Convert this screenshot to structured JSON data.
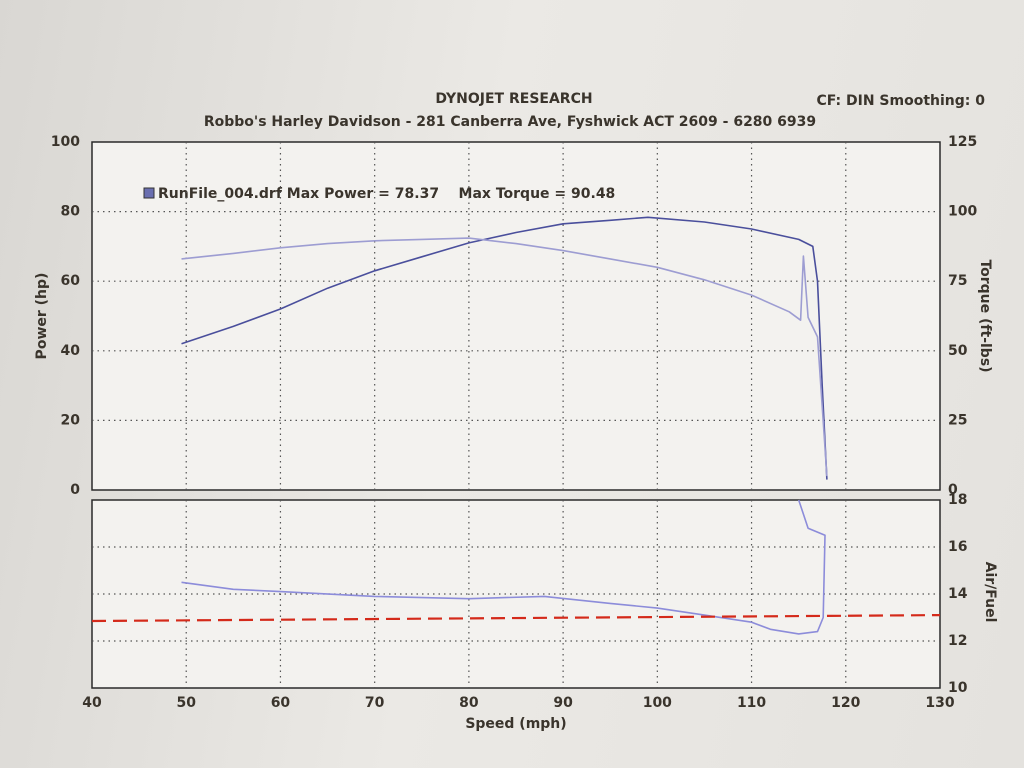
{
  "chart_data": [
    {
      "type": "line",
      "title": "DYNOJET RESEARCH",
      "header_note": "CF: DIN  Smoothing: 0",
      "subtitle": "Robbo's Harley Davidson - 281 Canberra Ave, Fyshwick ACT 2609 - 6280 6939",
      "legend_text": "RunFile_004.drf Max Power = 78.37    Max Torque = 90.48",
      "y_label": "Power (hp)",
      "y2_label": "Torque (ft-lbs)",
      "xlim": [
        40,
        130
      ],
      "ylim": [
        0,
        100
      ],
      "yticks": [
        0,
        20,
        40,
        60,
        80,
        100
      ],
      "y2lim": [
        0,
        125
      ],
      "y2ticks": [
        0,
        25,
        50,
        75,
        100,
        125
      ],
      "grid": true,
      "series": [
        {
          "color": "#4a4f9c",
          "x": [
            49.5,
            55,
            60,
            65,
            70,
            75,
            80,
            85,
            90,
            95,
            99,
            105,
            110,
            115,
            116.5,
            117,
            117.5,
            118
          ],
          "values": [
            42,
            47,
            52,
            58,
            63,
            67,
            71,
            74,
            76.5,
            77.5,
            78.37,
            77,
            75,
            72,
            70,
            60,
            30,
            3
          ]
        },
        {
          "color": "#9d9dd2",
          "axis": "y2",
          "x": [
            49.5,
            55,
            60,
            65,
            70,
            75,
            80,
            85,
            90,
            95,
            100,
            105,
            110,
            114,
            115.2,
            115.5,
            116,
            117,
            117.5,
            118
          ],
          "values": [
            83,
            85,
            87,
            88.5,
            89.5,
            90,
            90.48,
            88.5,
            86,
            83,
            80,
            75.5,
            70,
            64,
            61,
            84,
            62,
            55,
            30,
            5
          ]
        }
      ]
    },
    {
      "type": "line",
      "x_label": "Speed (mph)",
      "y2_label": "Air/Fuel",
      "xlim": [
        40,
        130
      ],
      "xticks": [
        40,
        50,
        60,
        70,
        80,
        90,
        100,
        110,
        120,
        130
      ],
      "y2lim": [
        10,
        18
      ],
      "y2ticks": [
        10,
        12,
        14,
        16,
        18
      ],
      "grid": true,
      "series": [
        {
          "color": "#8c8cda",
          "axis": "y2",
          "x": [
            49.5,
            55,
            60,
            70,
            80,
            88,
            95,
            100,
            105,
            110,
            112,
            115,
            117,
            117.6,
            117.8,
            116,
            115
          ],
          "values": [
            14.5,
            14.2,
            14.1,
            13.9,
            13.8,
            13.9,
            13.6,
            13.4,
            13.1,
            12.8,
            12.5,
            12.3,
            12.4,
            13,
            16.5,
            16.8,
            18
          ]
        },
        {
          "color": "#d42a1a",
          "axis": "y2",
          "dashed": true,
          "x": [
            40,
            130
          ],
          "values": [
            12.85,
            13.1
          ]
        }
      ]
    }
  ]
}
